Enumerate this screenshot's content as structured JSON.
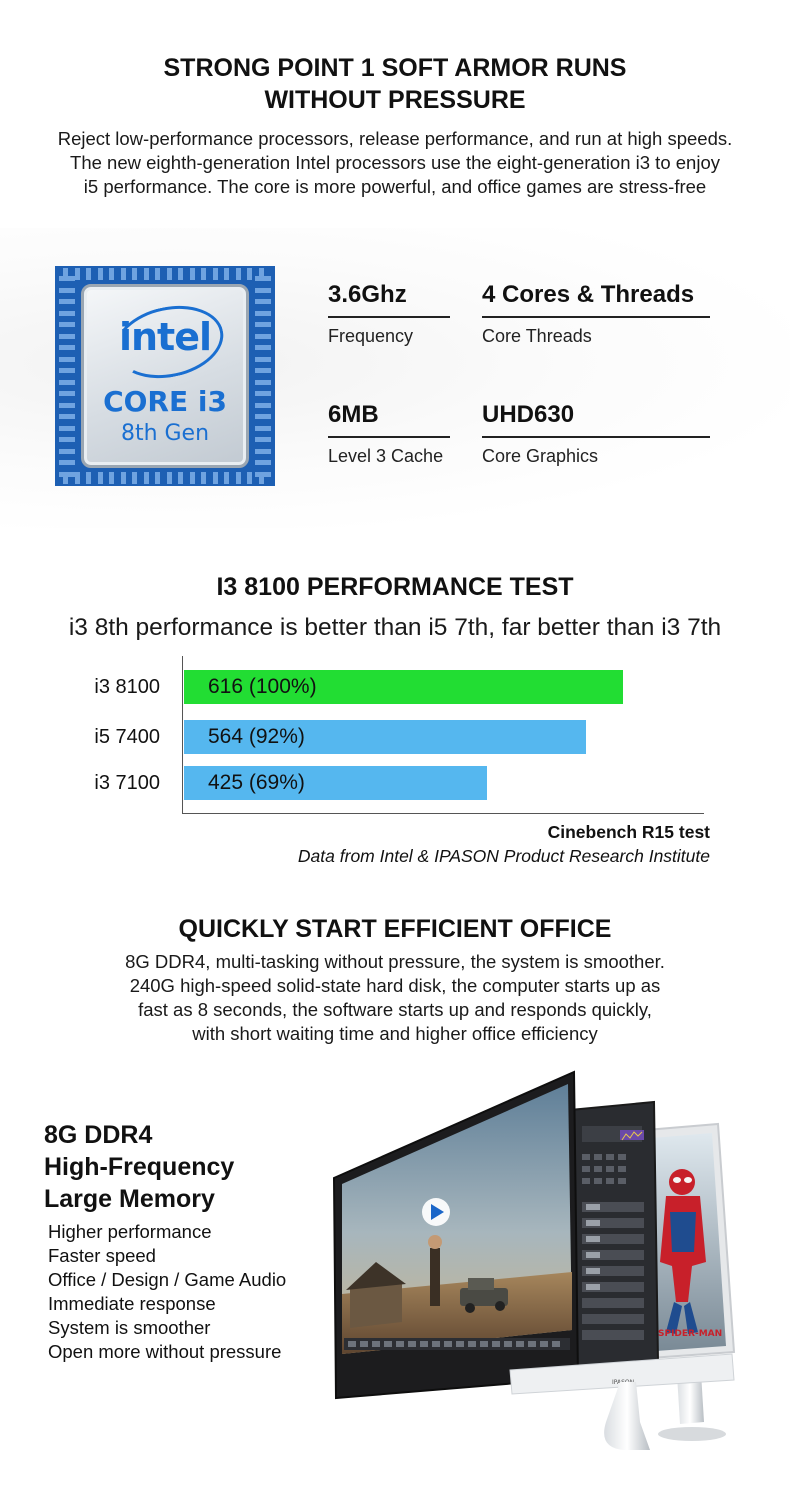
{
  "section1": {
    "title_lines": [
      "STRONG POINT 1 SOFT ARMOR RUNS",
      "WITHOUT PRESSURE"
    ],
    "text_lines": [
      "Reject low-performance processors, release performance, and run at high speeds.",
      "The new eighth-generation Intel processors use the eight-generation i3 to enjoy",
      "i5 performance. The core is more powerful, and office games are stress-free"
    ],
    "chip": {
      "brand": "intel",
      "model": "CORE i3",
      "generation": "8th Gen",
      "colors": {
        "border": "#1d5fb3",
        "logo": "#1a6fd1"
      }
    },
    "specs": [
      {
        "value": "3.6Ghz",
        "label": "Frequency"
      },
      {
        "value": "4 Cores & Threads",
        "label": "Core Threads"
      },
      {
        "value": "6MB",
        "label": "Level 3 Cache"
      },
      {
        "value": "UHD630",
        "label": "Core Graphics"
      }
    ]
  },
  "section2": {
    "title": "I3 8100 PERFORMANCE TEST",
    "subtitle": "i3 8th performance is better than i5 7th, far better than i3 7th",
    "benchmark": "Cinebench R15 test",
    "source": "Data from Intel & IPASON Product Research Institute"
  },
  "chart_data": {
    "type": "bar",
    "orientation": "horizontal",
    "categories": [
      "i3 8100",
      "i5 7400",
      "i3 7100"
    ],
    "values": [
      616,
      564,
      425
    ],
    "data_labels": [
      "616 (100%)",
      "564 (92%)",
      "425 (69%)"
    ],
    "colors": [
      "#22dd33",
      "#55b7ef",
      "#55b7ef"
    ],
    "xlim": [
      0,
      700
    ],
    "grid": false,
    "title": "",
    "xlabel": "",
    "ylabel": ""
  },
  "section3": {
    "title": "QUICKLY START EFFICIENT OFFICE",
    "text_lines": [
      "8G DDR4, multi-tasking without pressure, the system is smoother.",
      "240G high-speed solid-state hard disk, the computer starts up as",
      "fast as 8 seconds, the software starts up and responds quickly,",
      "with short waiting time and higher office efficiency"
    ],
    "memory_title_lines": [
      "8G DDR4",
      "High-Frequency",
      "Large Memory"
    ],
    "memory_points": [
      "Higher performance",
      "Faster speed",
      "Office / Design / Game Audio",
      "Immediate response",
      "System is smoother",
      "Open more without pressure"
    ],
    "monitor_brand": "IPASON",
    "poster_text": "SPIDER-MAN"
  }
}
